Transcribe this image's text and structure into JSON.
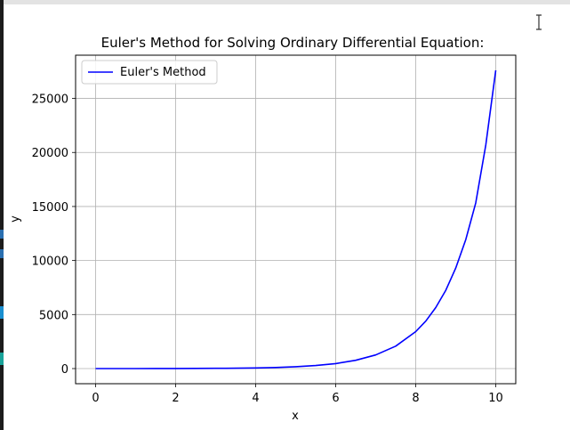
{
  "chart_data": {
    "type": "line",
    "title": "Euler's Method for Solving Ordinary Differential Equation:",
    "xlabel": "x",
    "ylabel": "y",
    "xlim": [
      -0.5,
      10.5
    ],
    "ylim": [
      -1400,
      29000
    ],
    "xticks": [
      0,
      2,
      4,
      6,
      8,
      10
    ],
    "yticks": [
      0,
      5000,
      10000,
      15000,
      20000,
      25000
    ],
    "grid": true,
    "legend_position": "top-left",
    "series": [
      {
        "name": "Euler's Method",
        "color": "#0000ff",
        "x": [
          0,
          0.5,
          1,
          1.5,
          2,
          2.5,
          3,
          3.5,
          4,
          4.5,
          5,
          5.5,
          6,
          6.5,
          7,
          7.5,
          8,
          8.25,
          8.5,
          8.75,
          9,
          9.25,
          9.5,
          9.75,
          10
        ],
        "y": [
          1,
          2,
          3,
          5,
          8,
          14,
          23,
          37,
          62,
          103,
          170,
          280,
          462,
          763,
          1260,
          2080,
          3420,
          4390,
          5640,
          7240,
          9300,
          11940,
          15330,
          20690,
          27600
        ]
      }
    ]
  }
}
